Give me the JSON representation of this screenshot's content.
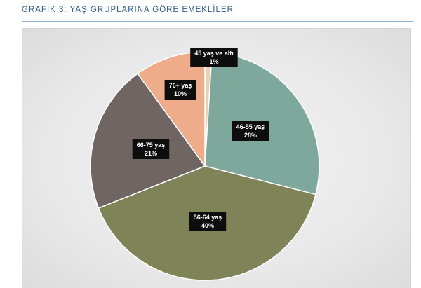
{
  "caption": "GRAFİK 3: YAŞ GRUPLARINA GÖRE EMEKLİLER",
  "chart_data": {
    "type": "pie",
    "title": "GRAFİK 3: YAŞ GRUPLARINA GÖRE EMEKLİLER",
    "categories": [
      "45 yaş ve altı",
      "46-55 yaş",
      "56-64 yaş",
      "66-75 yaş",
      "76+ yaş"
    ],
    "values": [
      1,
      28,
      40,
      21,
      10
    ],
    "value_labels": [
      "1%",
      "28%",
      "40%",
      "21%",
      "10%"
    ],
    "colors": [
      "#e8d2b6",
      "#7ea89c",
      "#7f8458",
      "#6f6563",
      "#eeac8b"
    ],
    "start": "12 o'clock",
    "direction": "clockwise"
  }
}
